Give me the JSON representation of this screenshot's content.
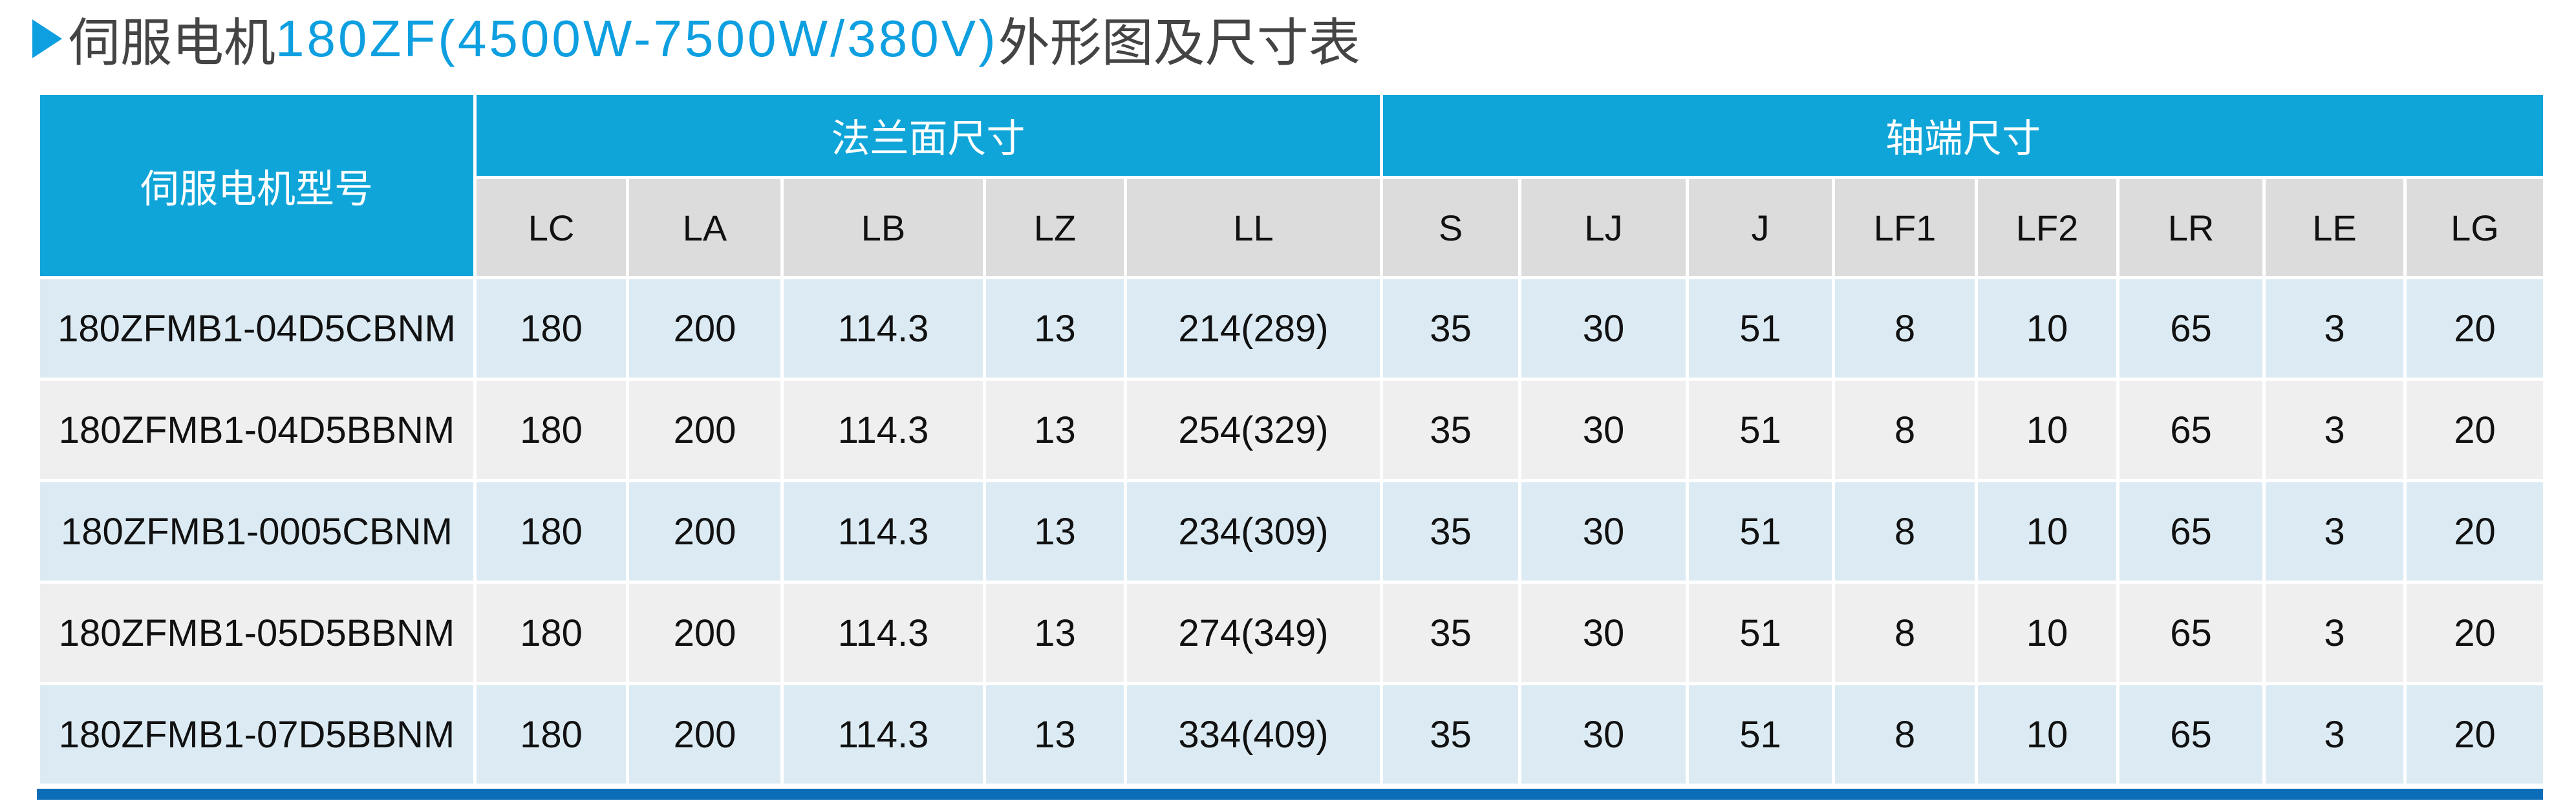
{
  "title": {
    "prefix": "伺服电机",
    "model": "180ZF(4500W-7500W/380V)",
    "suffix": "外形图及尺寸表"
  },
  "colors": {
    "header": "#10a5d8",
    "subheader": "#dcdcdc",
    "row_odd": "#dcebf3",
    "row_even": "#efefef",
    "bottom_bar": "#0b6db8",
    "title_accent": "#0e9fe0"
  },
  "table": {
    "model_header": "伺服电机型号",
    "groups": [
      "法兰面尺寸",
      "轴端尺寸"
    ],
    "columns": [
      "LC",
      "LA",
      "LB",
      "LZ",
      "LL",
      "S",
      "LJ",
      "J",
      "LF1",
      "LF2",
      "LR",
      "LE",
      "LG"
    ],
    "rows": [
      [
        "180ZFMB1-04D5CBNM",
        "180",
        "200",
        "114.3",
        "13",
        "214(289)",
        "35",
        "30",
        "51",
        "8",
        "10",
        "65",
        "3",
        "20"
      ],
      [
        "180ZFMB1-04D5BBNM",
        "180",
        "200",
        "114.3",
        "13",
        "254(329)",
        "35",
        "30",
        "51",
        "8",
        "10",
        "65",
        "3",
        "20"
      ],
      [
        "180ZFMB1-0005CBNM",
        "180",
        "200",
        "114.3",
        "13",
        "234(309)",
        "35",
        "30",
        "51",
        "8",
        "10",
        "65",
        "3",
        "20"
      ],
      [
        "180ZFMB1-05D5BBNM",
        "180",
        "200",
        "114.3",
        "13",
        "274(349)",
        "35",
        "30",
        "51",
        "8",
        "10",
        "65",
        "3",
        "20"
      ],
      [
        "180ZFMB1-07D5BBNM",
        "180",
        "200",
        "114.3",
        "13",
        "334(409)",
        "35",
        "30",
        "51",
        "8",
        "10",
        "65",
        "3",
        "20"
      ]
    ]
  }
}
